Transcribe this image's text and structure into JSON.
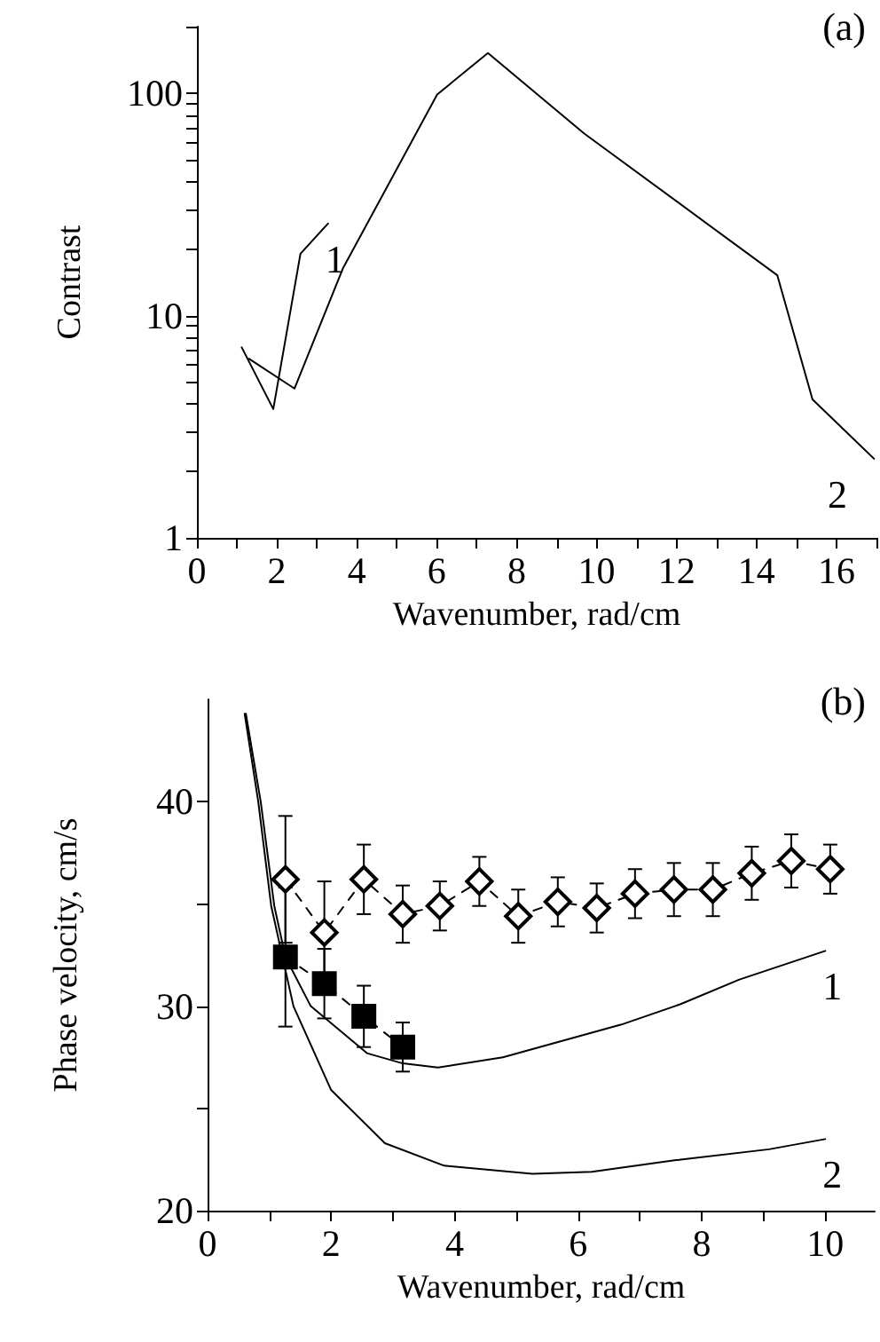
{
  "chart_data": [
    {
      "type": "line",
      "xlabel": "Wavenumber, rad/cm",
      "ylabel": "Contrast",
      "log": "y",
      "marker": "none",
      "line_style": "solid",
      "grid": false,
      "xlim": [
        0,
        17
      ],
      "xticks": [
        0,
        {
          "value": 1,
          "label": null
        },
        2,
        {
          "value": 3,
          "label": null
        },
        4,
        {
          "value": 5,
          "label": null
        },
        6,
        {
          "value": 7,
          "label": null
        },
        8,
        {
          "value": 9,
          "label": null
        },
        10,
        {
          "value": 11,
          "label": null
        },
        12,
        {
          "value": 13,
          "label": null
        },
        14,
        {
          "value": 15,
          "label": null
        },
        16,
        {
          "value": 17,
          "label": null
        }
      ],
      "ylim": [
        1,
        200
      ],
      "yticks": [
        1,
        {
          "value": 2,
          "label": null
        },
        {
          "value": 3,
          "label": null
        },
        {
          "value": 4,
          "label": null
        },
        {
          "value": 5,
          "label": null
        },
        {
          "value": 6,
          "label": null
        },
        {
          "value": 7,
          "label": null
        },
        {
          "value": 8,
          "label": null
        },
        {
          "value": 9,
          "label": null
        },
        10,
        {
          "value": 20,
          "label": null
        },
        {
          "value": 30,
          "label": null
        },
        {
          "value": 40,
          "label": null
        },
        {
          "value": 50,
          "label": null
        },
        {
          "value": 60,
          "label": null
        },
        {
          "value": 70,
          "label": null
        },
        {
          "value": 80,
          "label": null
        },
        {
          "value": 90,
          "label": null
        },
        100,
        {
          "value": 200,
          "label": null
        }
      ],
      "series": [
        {
          "name": "1",
          "color": "#000000",
          "x": [
            1.12,
            1.91,
            2.59,
            3.28
          ],
          "values": [
            7.2,
            3.8,
            19,
            26
          ]
        },
        {
          "name": "2",
          "color": "#000000",
          "x": [
            1.3,
            2.44,
            3.65,
            6.01,
            7.28,
            9.69,
            14.52,
            15.4,
            16.94
          ],
          "values": [
            6.4,
            4.7,
            16.3,
            99,
            152,
            66,
            15.2,
            4.2,
            2.27
          ]
        }
      ],
      "annotations": [
        "(a)"
      ]
    },
    {
      "type": "line",
      "xlabel": "Wavenumber, rad/cm",
      "ylabel": "Phase velocity, cm/s",
      "grid": false,
      "xlim": [
        0,
        10.8
      ],
      "xticks": [
        0,
        {
          "value": 1,
          "label": null
        },
        2,
        {
          "value": 3,
          "label": null
        },
        4,
        {
          "value": 5,
          "label": null
        },
        6,
        {
          "value": 7,
          "label": null
        },
        8,
        {
          "value": 9,
          "label": null
        },
        10
      ],
      "ylim": [
        20,
        45
      ],
      "yticks": [
        20,
        {
          "value": 25,
          "label": null
        },
        30,
        {
          "value": 35,
          "label": null
        },
        40
      ],
      "series": [
        {
          "color": "#000000",
          "marker": "diamond",
          "line_style": "dashed",
          "x": [
            1.26,
            1.89,
            2.53,
            3.16,
            3.76,
            4.4,
            5.03,
            5.67,
            6.3,
            6.92,
            7.55,
            8.18,
            8.81,
            9.45,
            10.08
          ],
          "values": [
            36.2,
            33.6,
            36.2,
            34.5,
            34.9,
            36.1,
            34.4,
            35.1,
            34.8,
            35.5,
            35.7,
            35.7,
            36.5,
            37.1,
            36.7
          ],
          "errors": [
            3.1,
            2.5,
            1.7,
            1.4,
            1.2,
            1.2,
            1.3,
            1.2,
            1.2,
            1.2,
            1.3,
            1.3,
            1.3,
            1.3,
            1.2
          ]
        },
        {
          "color": "#000000",
          "marker": "square",
          "line_style": "dashed",
          "x": [
            1.26,
            1.89,
            2.53,
            3.16
          ],
          "values": [
            32.4,
            31.1,
            29.5,
            28.0
          ],
          "errors": [
            3.4,
            1.7,
            1.5,
            1.2
          ]
        },
        {
          "name": "1",
          "color": "#000000",
          "marker": "none",
          "line_style": "solid",
          "x": [
            0.62,
            0.86,
            1.08,
            1.26,
            1.67,
            1.91,
            2.58,
            3.16,
            3.73,
            4.78,
            5.74,
            6.7,
            7.66,
            8.61,
            10
          ],
          "values": [
            44.3,
            40,
            34.9,
            32.4,
            30,
            29.4,
            27.7,
            27.2,
            27.0,
            27.5,
            28.3,
            29.1,
            30.1,
            31.3,
            32.7
          ]
        },
        {
          "name": "2",
          "color": "#000000",
          "marker": "none",
          "line_style": "solid",
          "x": [
            0.6,
            0.82,
            1.03,
            1.39,
            2.0,
            2.87,
            3.83,
            5.26,
            6.22,
            7.66,
            9.09,
            10
          ],
          "values": [
            44.3,
            40,
            34.9,
            30,
            25.9,
            23.3,
            22.2,
            21.8,
            21.9,
            22.5,
            23.0,
            23.5
          ]
        }
      ],
      "annotations": [
        "(b)"
      ]
    }
  ]
}
